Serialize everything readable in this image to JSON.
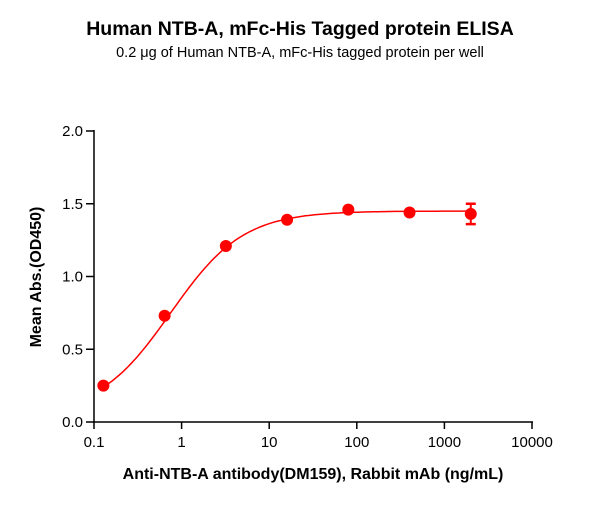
{
  "chart_data": {
    "type": "line",
    "title": "Human NTB-A, mFc-His Tagged protein ELISA",
    "subtitle": "0.2 μg of Human NTB-A, mFc-His tagged protein per well",
    "xlabel": "Anti-NTB-A antibody(DM159), Rabbit mAb (ng/mL)",
    "ylabel": "Mean Abs.(OD450)",
    "xscale": "log",
    "xlim": [
      0.1,
      10000
    ],
    "ylim": [
      0.0,
      2.0
    ],
    "x_ticks": [
      "0.1",
      "1",
      "10",
      "100",
      "1000",
      "10000"
    ],
    "y_ticks": [
      "0.0",
      "0.5",
      "1.0",
      "1.5",
      "2.0"
    ],
    "grid": false,
    "legend": null,
    "series": [
      {
        "name": "Human NTB-A, mFc-His",
        "color": "#ff0000",
        "x": [
          0.128,
          0.64,
          3.2,
          16,
          80,
          400,
          2000
        ],
        "y": [
          0.25,
          0.73,
          1.21,
          1.39,
          1.46,
          1.44,
          1.43
        ],
        "error": [
          0.0,
          0.0,
          0.0,
          0.0,
          0.0,
          0.0,
          0.07
        ],
        "fit": "4PL sigmoidal curve"
      }
    ]
  }
}
